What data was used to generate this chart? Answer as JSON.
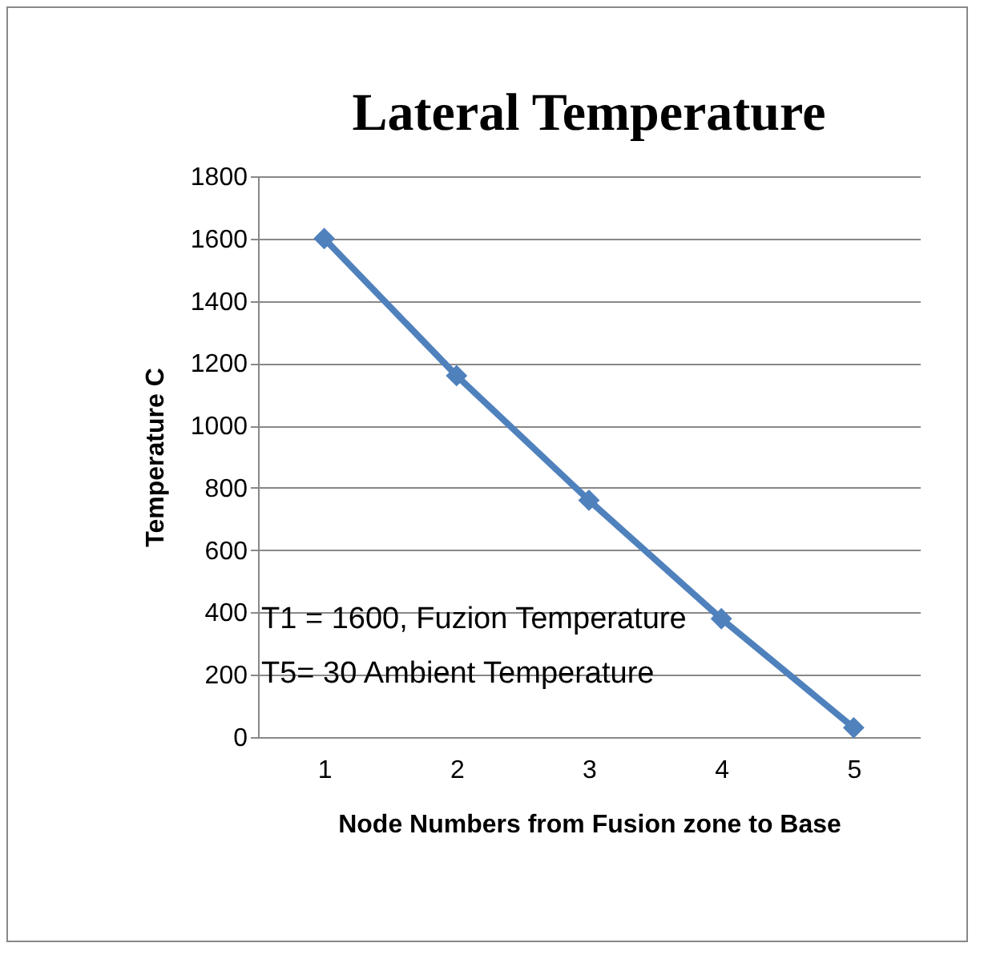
{
  "chart_data": {
    "type": "line",
    "title": "Lateral Temperature",
    "xlabel": "Node Numbers from Fusion zone to Base",
    "ylabel": "Temperature  C",
    "categories": [
      "1",
      "2",
      "3",
      "4",
      "5"
    ],
    "series": [
      {
        "color": "#4f81bd",
        "values": [
          1600,
          1160,
          760,
          380,
          30
        ]
      }
    ],
    "ylim": [
      0,
      1800
    ],
    "yticks": [
      0,
      200,
      400,
      600,
      800,
      1000,
      1200,
      1400,
      1600,
      1800
    ],
    "grid": "y",
    "marker": "diamond",
    "line_style": "solid",
    "annotations": [
      "T1 = 1600, Fuzion Temperature",
      "T5= 30 Ambient Temperature"
    ]
  }
}
